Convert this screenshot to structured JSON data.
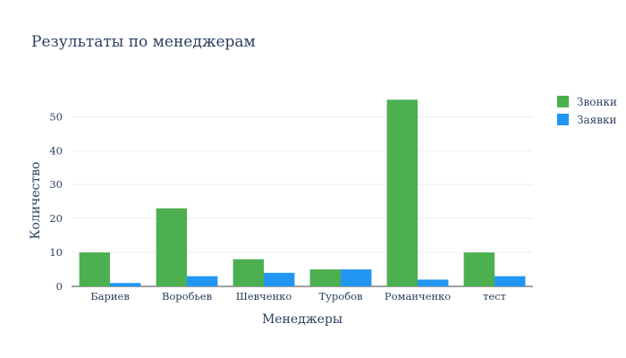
{
  "chart_data": {
    "type": "bar",
    "title": "Результаты по менеджерам",
    "xlabel": "Менеджеры",
    "ylabel": "Количество",
    "categories": [
      "Бариев",
      "Воробьев",
      "Шевченко",
      "Туробов",
      "Романченко",
      "тест"
    ],
    "series": [
      {
        "name": "Звонки",
        "color": "#4caf50",
        "values": [
          10,
          23,
          8,
          5,
          55,
          10
        ]
      },
      {
        "name": "Заявки",
        "color": "#2196f3",
        "values": [
          1,
          3,
          4,
          5,
          2,
          3
        ]
      }
    ],
    "ylim": [
      0,
      58
    ],
    "yticks": [
      0,
      10,
      20,
      30,
      40,
      50
    ],
    "grid": true,
    "legend_position": "top-right"
  }
}
